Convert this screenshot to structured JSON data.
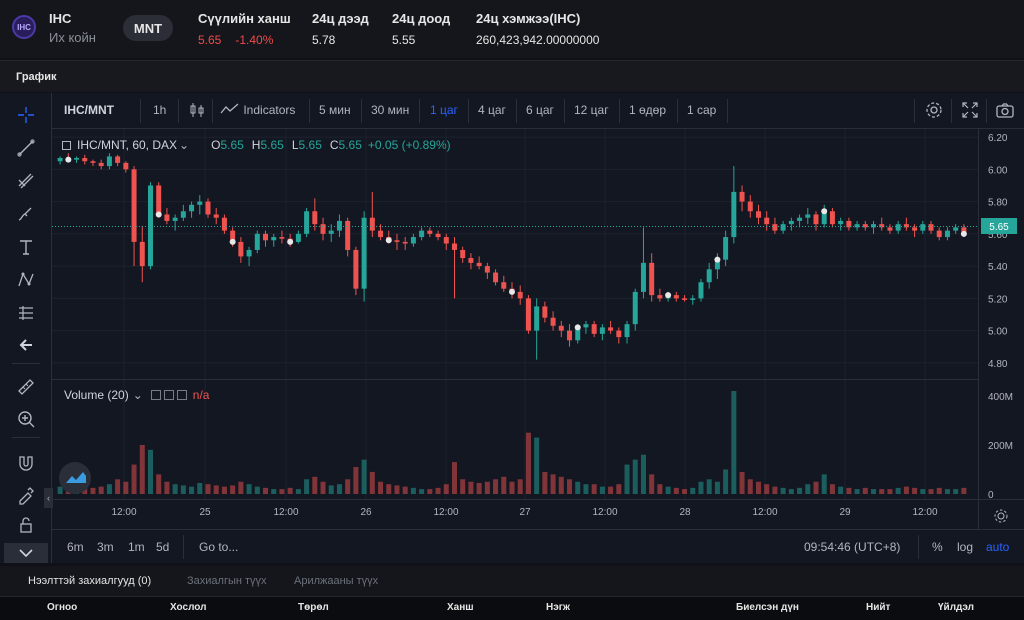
{
  "header": {
    "logo_letter": "IHC",
    "symbol": "IHC",
    "name": "Их койн",
    "currency": "MNT",
    "stats": [
      {
        "label": "Сүүлийн ханш",
        "value": "5.65",
        "change": "-1.40%"
      },
      {
        "label": "24ц дээд",
        "value": "5.78"
      },
      {
        "label": "24ц доод",
        "value": "5.55"
      },
      {
        "label": "24ц хэмжээ(IHC)",
        "value": "260,423,942.00000000"
      }
    ]
  },
  "section_title": "График",
  "toolbar": {
    "symbol": "IHC/MNT",
    "interval": "1h",
    "indicators": "Indicators",
    "timeframes": [
      "5 мин",
      "30 мин",
      "1 цаг",
      "4 цаг",
      "6 цаг",
      "12 цаг",
      "1 өдөр",
      "1 сар"
    ],
    "active_timeframe": "1 цаг"
  },
  "legend": {
    "title": "IHC/MNT, 60, DAX",
    "o_label": "O",
    "o": "5.65",
    "h_label": "H",
    "h": "5.65",
    "l_label": "L",
    "l": "5.65",
    "c_label": "C",
    "c": "5.65",
    "change": "+0.05 (+0.89%)"
  },
  "volume_legend": {
    "title": "Volume (20)",
    "value": "n/a"
  },
  "price_axis": [
    "6.20",
    "6.00",
    "5.80",
    "5.60",
    "5.40",
    "5.20",
    "5.00",
    "4.80"
  ],
  "current_price": "5.65",
  "volume_axis": [
    "400M",
    "200M",
    "0"
  ],
  "time_axis": [
    "12:00",
    "25",
    "12:00",
    "26",
    "12:00",
    "27",
    "12:00",
    "28",
    "12:00",
    "29",
    "12:00"
  ],
  "bottombar": {
    "ranges": [
      "6m",
      "3m",
      "1m",
      "5d"
    ],
    "goto": "Go to...",
    "clock": "09:54:46 (UTC+8)",
    "percent": "%",
    "log": "log",
    "auto": "auto"
  },
  "orders": {
    "tabs": [
      "Нээлттэй захиалгууд (0)",
      "Захиалгын түүх",
      "Арилжааны түүх"
    ],
    "columns": [
      "Огноо",
      "Хослол",
      "Төрөл",
      "Ханш",
      "Нэгж",
      "Биелсэн дүн",
      "Нийт",
      "Үйлдэл"
    ]
  },
  "colors": {
    "up": "#26a69a",
    "down": "#ef5350",
    "accent": "#2962ff"
  },
  "chart_data": {
    "type": "candlestick",
    "price_range": [
      4.7,
      6.25
    ],
    "volume_range": [
      0,
      420
    ],
    "candles": [
      [
        6.05,
        6.08,
        6.03,
        6.07,
        30
      ],
      [
        6.07,
        6.1,
        6.05,
        6.06,
        20
      ],
      [
        6.06,
        6.08,
        6.04,
        6.07,
        25
      ],
      [
        6.07,
        6.09,
        6.03,
        6.05,
        30
      ],
      [
        6.05,
        6.06,
        6.02,
        6.04,
        25
      ],
      [
        6.04,
        6.06,
        6.0,
        6.02,
        30
      ],
      [
        6.02,
        6.1,
        6.0,
        6.08,
        40
      ],
      [
        6.08,
        6.09,
        6.02,
        6.04,
        60
      ],
      [
        6.04,
        6.05,
        5.98,
        6.0,
        50
      ],
      [
        6.0,
        6.02,
        5.4,
        5.55,
        120
      ],
      [
        5.55,
        5.65,
        5.3,
        5.4,
        200
      ],
      [
        5.4,
        5.92,
        5.38,
        5.9,
        180
      ],
      [
        5.9,
        5.92,
        5.7,
        5.72,
        80
      ],
      [
        5.72,
        5.76,
        5.66,
        5.68,
        50
      ],
      [
        5.68,
        5.72,
        5.62,
        5.7,
        40
      ],
      [
        5.7,
        5.78,
        5.68,
        5.74,
        35
      ],
      [
        5.74,
        5.8,
        5.7,
        5.78,
        30
      ],
      [
        5.78,
        5.84,
        5.72,
        5.8,
        45
      ],
      [
        5.8,
        5.82,
        5.7,
        5.72,
        40
      ],
      [
        5.72,
        5.76,
        5.66,
        5.7,
        35
      ],
      [
        5.7,
        5.72,
        5.6,
        5.62,
        30
      ],
      [
        5.62,
        5.64,
        5.52,
        5.55,
        35
      ],
      [
        5.55,
        5.58,
        5.42,
        5.46,
        50
      ],
      [
        5.46,
        5.52,
        5.4,
        5.5,
        40
      ],
      [
        5.5,
        5.62,
        5.48,
        5.6,
        30
      ],
      [
        5.6,
        5.62,
        5.52,
        5.56,
        25
      ],
      [
        5.56,
        5.6,
        5.52,
        5.58,
        20
      ],
      [
        5.58,
        5.62,
        5.54,
        5.57,
        20
      ],
      [
        5.57,
        5.6,
        5.52,
        5.55,
        25
      ],
      [
        5.55,
        5.62,
        5.54,
        5.6,
        20
      ],
      [
        5.6,
        5.76,
        5.58,
        5.74,
        60
      ],
      [
        5.74,
        5.82,
        5.62,
        5.66,
        70
      ],
      [
        5.66,
        5.7,
        5.56,
        5.6,
        50
      ],
      [
        5.6,
        5.66,
        5.55,
        5.62,
        35
      ],
      [
        5.62,
        5.72,
        5.58,
        5.68,
        40
      ],
      [
        5.68,
        5.7,
        5.46,
        5.5,
        60
      ],
      [
        5.5,
        5.52,
        5.22,
        5.26,
        110
      ],
      [
        5.26,
        5.74,
        5.18,
        5.7,
        140
      ],
      [
        5.7,
        5.86,
        5.58,
        5.62,
        90
      ],
      [
        5.62,
        5.66,
        5.56,
        5.58,
        50
      ],
      [
        5.58,
        5.62,
        5.54,
        5.56,
        40
      ],
      [
        5.56,
        5.6,
        5.5,
        5.55,
        35
      ],
      [
        5.55,
        5.58,
        5.5,
        5.54,
        30
      ],
      [
        5.54,
        5.6,
        5.52,
        5.58,
        25
      ],
      [
        5.58,
        5.64,
        5.56,
        5.62,
        20
      ],
      [
        5.62,
        5.64,
        5.58,
        5.6,
        20
      ],
      [
        5.6,
        5.62,
        5.56,
        5.58,
        25
      ],
      [
        5.58,
        5.6,
        5.5,
        5.54,
        40
      ],
      [
        5.54,
        5.58,
        5.2,
        5.5,
        130
      ],
      [
        5.5,
        5.52,
        5.42,
        5.45,
        60
      ],
      [
        5.45,
        5.48,
        5.38,
        5.42,
        50
      ],
      [
        5.42,
        5.46,
        5.38,
        5.4,
        45
      ],
      [
        5.4,
        5.42,
        5.32,
        5.36,
        50
      ],
      [
        5.36,
        5.38,
        5.28,
        5.3,
        60
      ],
      [
        5.3,
        5.34,
        5.24,
        5.26,
        70
      ],
      [
        5.26,
        5.3,
        5.2,
        5.24,
        50
      ],
      [
        5.24,
        5.28,
        5.16,
        5.2,
        60
      ],
      [
        5.2,
        5.22,
        4.98,
        5.0,
        250
      ],
      [
        5.0,
        5.2,
        4.82,
        5.15,
        230
      ],
      [
        5.15,
        5.18,
        5.05,
        5.08,
        90
      ],
      [
        5.08,
        5.12,
        5.0,
        5.03,
        80
      ],
      [
        5.03,
        5.06,
        4.96,
        5.0,
        70
      ],
      [
        5.0,
        5.04,
        4.9,
        4.94,
        60
      ],
      [
        4.94,
        5.04,
        4.92,
        5.02,
        50
      ],
      [
        5.02,
        5.06,
        4.98,
        5.04,
        40
      ],
      [
        5.04,
        5.06,
        4.96,
        4.98,
        40
      ],
      [
        4.98,
        5.04,
        4.94,
        5.02,
        30
      ],
      [
        5.02,
        5.06,
        4.98,
        5.0,
        30
      ],
      [
        5.0,
        5.02,
        4.92,
        4.96,
        40
      ],
      [
        4.96,
        5.06,
        4.92,
        5.04,
        120
      ],
      [
        5.04,
        5.26,
        5.0,
        5.24,
        140
      ],
      [
        5.24,
        5.64,
        5.2,
        5.42,
        160
      ],
      [
        5.42,
        5.48,
        5.18,
        5.22,
        80
      ],
      [
        5.22,
        5.26,
        5.18,
        5.2,
        40
      ],
      [
        5.2,
        5.24,
        5.18,
        5.22,
        30
      ],
      [
        5.22,
        5.24,
        5.18,
        5.2,
        25
      ],
      [
        5.2,
        5.22,
        5.18,
        5.19,
        20
      ],
      [
        5.19,
        5.22,
        5.16,
        5.2,
        25
      ],
      [
        5.2,
        5.32,
        5.18,
        5.3,
        50
      ],
      [
        5.3,
        5.42,
        5.26,
        5.38,
        60
      ],
      [
        5.38,
        5.48,
        5.32,
        5.44,
        50
      ],
      [
        5.44,
        5.62,
        5.4,
        5.58,
        100
      ],
      [
        5.58,
        6.02,
        5.54,
        5.86,
        420
      ],
      [
        5.86,
        5.9,
        5.74,
        5.8,
        90
      ],
      [
        5.8,
        5.84,
        5.7,
        5.74,
        60
      ],
      [
        5.74,
        5.78,
        5.66,
        5.7,
        50
      ],
      [
        5.7,
        5.74,
        5.62,
        5.66,
        40
      ],
      [
        5.66,
        5.7,
        5.6,
        5.62,
        30
      ],
      [
        5.62,
        5.68,
        5.6,
        5.66,
        25
      ],
      [
        5.66,
        5.7,
        5.62,
        5.68,
        20
      ],
      [
        5.68,
        5.72,
        5.64,
        5.7,
        25
      ],
      [
        5.7,
        5.76,
        5.66,
        5.72,
        40
      ],
      [
        5.72,
        5.74,
        5.62,
        5.66,
        50
      ],
      [
        5.66,
        5.78,
        5.64,
        5.74,
        80
      ],
      [
        5.74,
        5.76,
        5.64,
        5.66,
        40
      ],
      [
        5.66,
        5.7,
        5.62,
        5.68,
        30
      ],
      [
        5.68,
        5.7,
        5.62,
        5.64,
        25
      ],
      [
        5.64,
        5.68,
        5.62,
        5.66,
        20
      ],
      [
        5.66,
        5.68,
        5.62,
        5.64,
        25
      ],
      [
        5.64,
        5.68,
        5.6,
        5.66,
        20
      ],
      [
        5.66,
        5.7,
        5.62,
        5.64,
        20
      ],
      [
        5.64,
        5.66,
        5.6,
        5.62,
        20
      ],
      [
        5.62,
        5.68,
        5.6,
        5.66,
        25
      ],
      [
        5.66,
        5.7,
        5.62,
        5.64,
        30
      ],
      [
        5.64,
        5.66,
        5.58,
        5.62,
        25
      ],
      [
        5.62,
        5.68,
        5.6,
        5.66,
        20
      ],
      [
        5.66,
        5.68,
        5.6,
        5.62,
        20
      ],
      [
        5.62,
        5.64,
        5.56,
        5.58,
        25
      ],
      [
        5.58,
        5.64,
        5.56,
        5.62,
        20
      ],
      [
        5.62,
        5.66,
        5.6,
        5.64,
        20
      ],
      [
        5.64,
        5.66,
        5.58,
        5.6,
        25
      ]
    ],
    "markers": [
      1,
      12,
      21,
      28,
      40,
      55,
      63,
      74,
      80,
      93,
      110
    ]
  }
}
